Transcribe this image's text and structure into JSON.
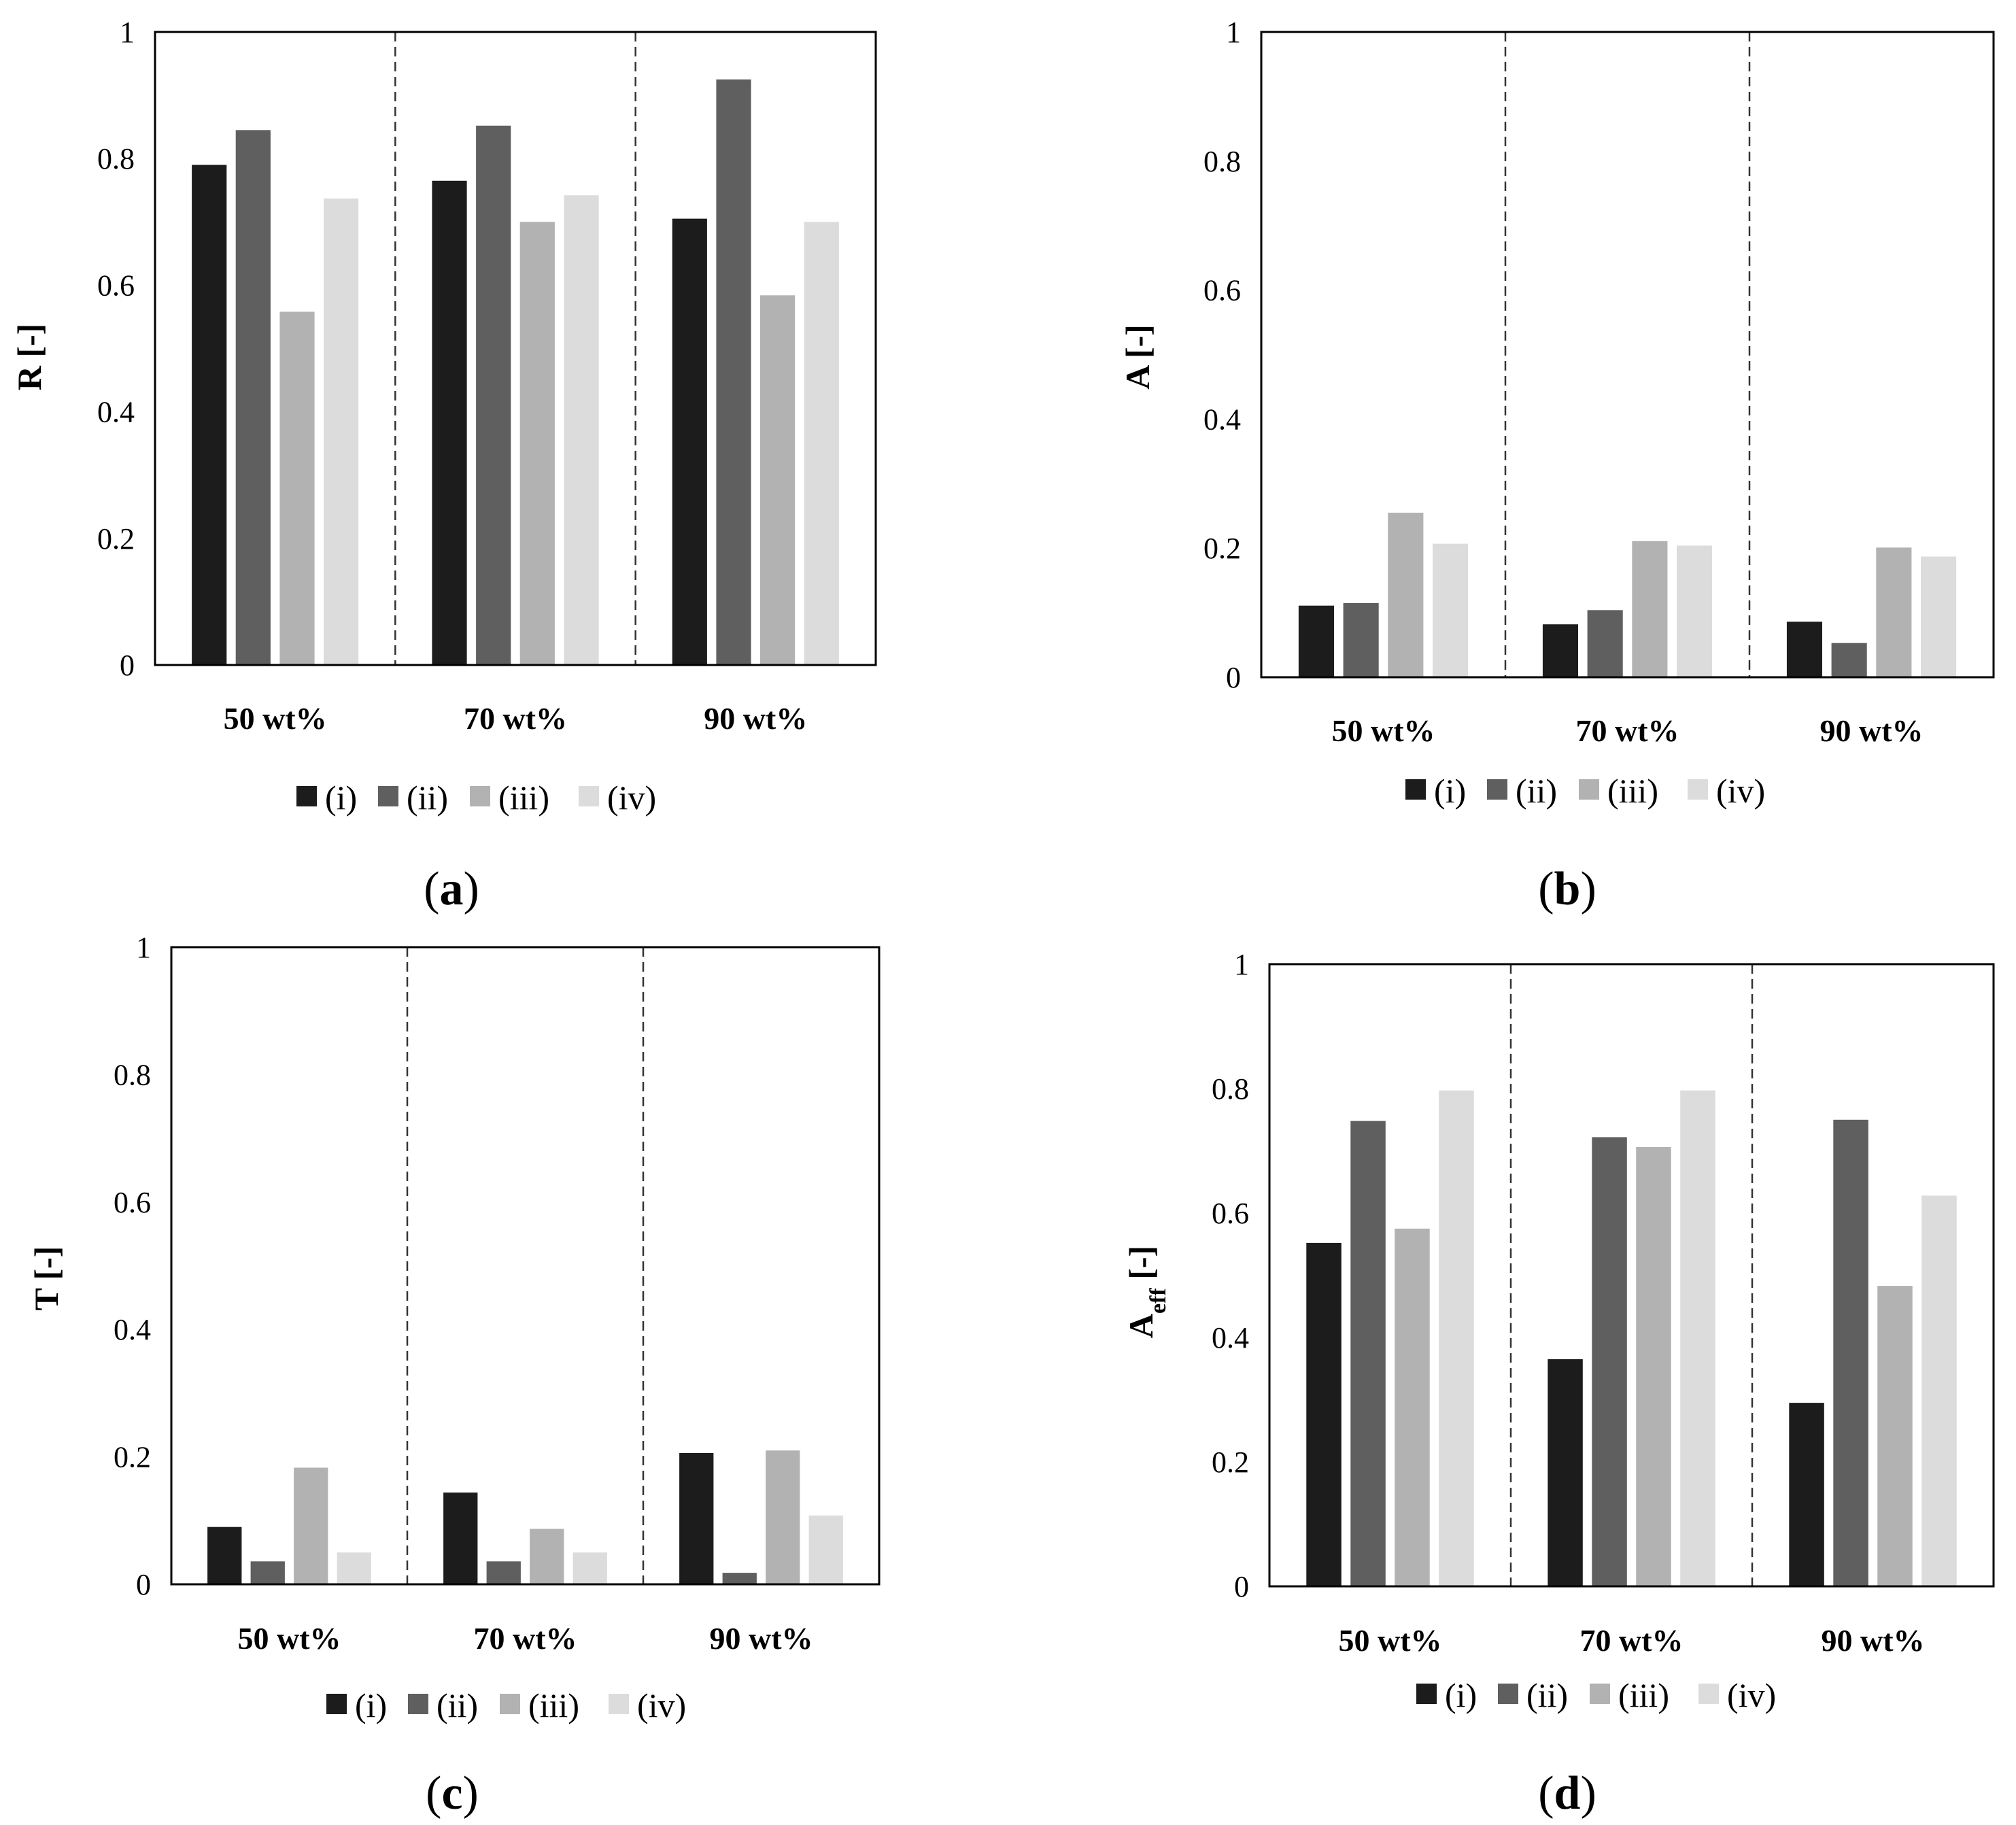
{
  "figure": {
    "background": "#ffffff"
  },
  "series_colors": {
    "(i)": "#1c1c1c",
    "(ii)": "#5f5f5f",
    "(iii)": "#b2b2b2",
    "(iv)": "#dcdcdc"
  },
  "chart_data": [
    {
      "id": "a",
      "type": "bar",
      "panel_label": "a",
      "ylabel": "R [-]",
      "ylabel_sub": "",
      "ylabel_tail": "",
      "ylim": [
        0,
        1
      ],
      "yticks": [
        "0",
        "0.2",
        "0.4",
        "0.6",
        "0.8",
        "1"
      ],
      "categories": [
        "50 wt%",
        "70 wt%",
        "90 wt%"
      ],
      "legend": [
        "(i)",
        "(ii)",
        "(iii)",
        "(iv)"
      ],
      "series": [
        {
          "name": "(i)",
          "values": [
            0.79,
            0.765,
            0.705
          ]
        },
        {
          "name": "(ii)",
          "values": [
            0.845,
            0.852,
            0.925
          ]
        },
        {
          "name": "(iii)",
          "values": [
            0.558,
            0.7,
            0.584
          ]
        },
        {
          "name": "(iv)",
          "values": [
            0.737,
            0.742,
            0.7
          ]
        }
      ]
    },
    {
      "id": "b",
      "type": "bar",
      "panel_label": "b",
      "ylabel": "A [-]",
      "ylabel_sub": "",
      "ylabel_tail": "",
      "ylim": [
        0,
        1
      ],
      "yticks": [
        "0",
        "0.2",
        "0.4",
        "0.6",
        "0.8",
        "1"
      ],
      "categories": [
        "50 wt%",
        "70 wt%",
        "90 wt%"
      ],
      "legend": [
        "(i)",
        "(ii)",
        "(iii)",
        "(iv)"
      ],
      "series": [
        {
          "name": "(i)",
          "values": [
            0.111,
            0.082,
            0.086
          ]
        },
        {
          "name": "(ii)",
          "values": [
            0.115,
            0.104,
            0.053
          ]
        },
        {
          "name": "(iii)",
          "values": [
            0.255,
            0.211,
            0.201
          ]
        },
        {
          "name": "(iv)",
          "values": [
            0.207,
            0.204,
            0.187
          ]
        }
      ]
    },
    {
      "id": "c",
      "type": "bar",
      "panel_label": "c",
      "ylabel": "T [-]",
      "ylabel_sub": "",
      "ylabel_tail": "",
      "ylim": [
        0,
        1
      ],
      "yticks": [
        "0",
        "0.2",
        "0.4",
        "0.6",
        "0.8",
        "1"
      ],
      "categories": [
        "50 wt%",
        "70 wt%",
        "90 wt%"
      ],
      "legend": [
        "(i)",
        "(ii)",
        "(iii)",
        "(iv)"
      ],
      "series": [
        {
          "name": "(i)",
          "values": [
            0.09,
            0.144,
            0.206
          ]
        },
        {
          "name": "(ii)",
          "values": [
            0.036,
            0.036,
            0.018
          ]
        },
        {
          "name": "(iii)",
          "values": [
            0.183,
            0.087,
            0.21
          ]
        },
        {
          "name": "(iv)",
          "values": [
            0.05,
            0.05,
            0.108
          ]
        }
      ]
    },
    {
      "id": "d",
      "type": "bar",
      "panel_label": "d",
      "ylabel": "A",
      "ylabel_sub": "eff",
      "ylabel_tail": " [-]",
      "ylim": [
        0,
        1
      ],
      "yticks": [
        "0",
        "0.2",
        "0.4",
        "0.6",
        "0.8",
        "1"
      ],
      "categories": [
        "50 wt%",
        "70 wt%",
        "90 wt%"
      ],
      "legend": [
        "(i)",
        "(ii)",
        "(iii)",
        "(iv)"
      ],
      "series": [
        {
          "name": "(i)",
          "values": [
            0.552,
            0.365,
            0.295
          ]
        },
        {
          "name": "(ii)",
          "values": [
            0.748,
            0.722,
            0.75
          ]
        },
        {
          "name": "(iii)",
          "values": [
            0.575,
            0.706,
            0.483
          ]
        },
        {
          "name": "(iv)",
          "values": [
            0.797,
            0.797,
            0.628
          ]
        }
      ]
    }
  ]
}
